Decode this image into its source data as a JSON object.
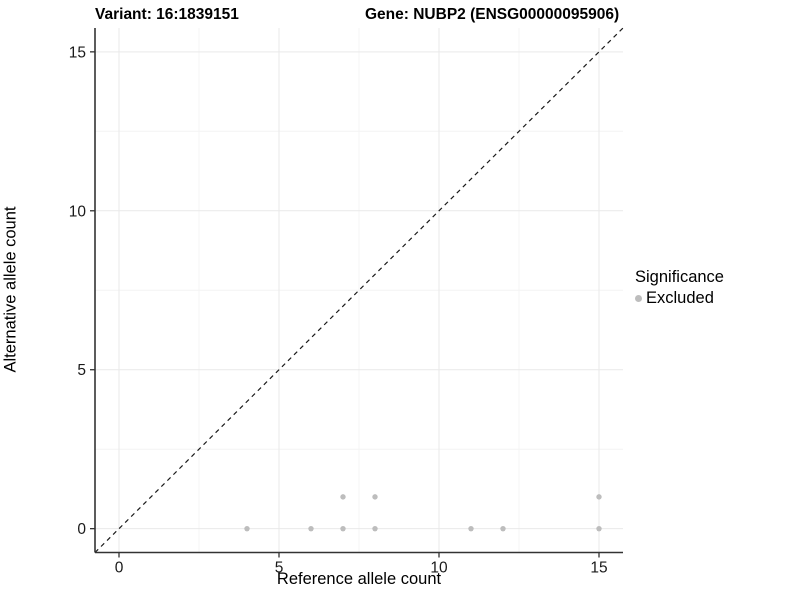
{
  "chart_data": {
    "type": "scatter",
    "titles": {
      "variant": "Variant: 16:1839151",
      "gene": "Gene: NUBP2 (ENSG00000095906)"
    },
    "xlabel": "Reference allele count",
    "ylabel": "Alternative allele count",
    "xlim": [
      -0.75,
      15.75
    ],
    "ylim": [
      -0.75,
      15.75
    ],
    "x_ticks": [
      0,
      5,
      10,
      15
    ],
    "y_ticks": [
      0,
      5,
      10,
      15
    ],
    "x_minor_gridlines": [
      2.5,
      7.5,
      12.5
    ],
    "y_minor_gridlines": [
      2.5,
      7.5,
      12.5
    ],
    "grid": true,
    "identity_line": {
      "equation": "y = x",
      "style": "dashed",
      "color": "#1a1a1a"
    },
    "series": [
      {
        "name": "Excluded",
        "color": "#bdbdbd",
        "points": [
          [
            4,
            0
          ],
          [
            6,
            0
          ],
          [
            7,
            0
          ],
          [
            8,
            0
          ],
          [
            11,
            0
          ],
          [
            12,
            0
          ],
          [
            15,
            0
          ],
          [
            7,
            1
          ],
          [
            8,
            1
          ],
          [
            15,
            1
          ]
        ]
      }
    ],
    "legend": {
      "title": "Significance",
      "position": "right",
      "items": [
        {
          "label": "Excluded",
          "color": "#bdbdbd",
          "marker": "dot"
        }
      ]
    },
    "colors": {
      "point": "#bdbdbd",
      "grid_major": "#e9e9e9",
      "grid_minor": "#f4f4f4",
      "axis": "#333333",
      "tick_text": "#1a1a1a"
    }
  }
}
